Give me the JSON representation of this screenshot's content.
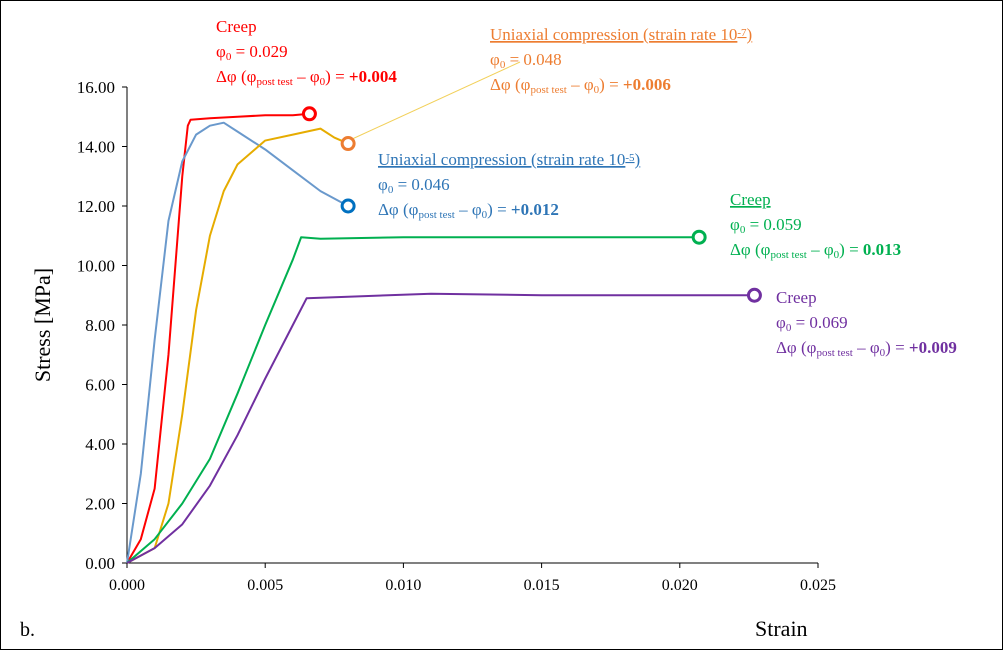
{
  "chart_data": {
    "type": "line",
    "panel_label": "b.",
    "x_label": "Strain",
    "y_label": "Stress [MPa]",
    "xlim": [
      0,
      0.025
    ],
    "ylim": [
      0,
      16
    ],
    "xticks": [
      {
        "value": 0,
        "label": "0.000"
      },
      {
        "value": 0.005,
        "label": "0.005"
      },
      {
        "value": 0.01,
        "label": "0.010"
      },
      {
        "value": 0.015,
        "label": "0.015"
      },
      {
        "value": 0.02,
        "label": "0.020"
      },
      {
        "value": 0.025,
        "label": "0.025"
      }
    ],
    "yticks": [
      {
        "value": 0,
        "label": "0.00"
      },
      {
        "value": 2,
        "label": "2.00"
      },
      {
        "value": 4,
        "label": "4.00"
      },
      {
        "value": 6,
        "label": "6.00"
      },
      {
        "value": 8,
        "label": "8.00"
      },
      {
        "value": 10,
        "label": "10.00"
      },
      {
        "value": 12,
        "label": "12.00"
      },
      {
        "value": 14,
        "label": "14.00"
      },
      {
        "value": 16,
        "label": "16.00"
      }
    ],
    "series": [
      {
        "color": "#ff0000",
        "marker_color": "#ff0000",
        "x": [
          0,
          0.0005,
          0.001,
          0.0015,
          0.002,
          0.0022,
          0.0023,
          0.003,
          0.004,
          0.005,
          0.006,
          0.0066
        ],
        "values": [
          0,
          0.8,
          2.5,
          7,
          13,
          14.7,
          14.9,
          14.95,
          15.0,
          15.05,
          15.05,
          15.1
        ]
      },
      {
        "color": "#6a99cc",
        "marker_color": "#0070c0",
        "x": [
          0,
          0.0005,
          0.001,
          0.0015,
          0.002,
          0.0025,
          0.003,
          0.0035,
          0.004,
          0.005,
          0.006,
          0.007,
          0.008
        ],
        "values": [
          0,
          3,
          7.5,
          11.5,
          13.5,
          14.4,
          14.7,
          14.8,
          14.5,
          13.9,
          13.2,
          12.5,
          12.0
        ]
      },
      {
        "color": "#e6ac00",
        "marker_color": "#ed7d31",
        "x": [
          0,
          0.001,
          0.0015,
          0.002,
          0.0025,
          0.003,
          0.0035,
          0.004,
          0.005,
          0.006,
          0.007,
          0.0075,
          0.008
        ],
        "values": [
          0,
          0.5,
          2,
          5,
          8.5,
          11,
          12.5,
          13.4,
          14.2,
          14.4,
          14.6,
          14.3,
          14.1
        ]
      },
      {
        "color": "#00b050",
        "marker_color": "#00b050",
        "x": [
          0,
          0.001,
          0.002,
          0.003,
          0.004,
          0.005,
          0.006,
          0.0063,
          0.007,
          0.01,
          0.015,
          0.0207
        ],
        "values": [
          0,
          0.8,
          2,
          3.5,
          5.7,
          8,
          10.2,
          10.95,
          10.9,
          10.95,
          10.95,
          10.95
        ]
      },
      {
        "color": "#7030a0",
        "marker_color": "#7030a0",
        "x": [
          0,
          0.001,
          0.002,
          0.003,
          0.004,
          0.005,
          0.006,
          0.0065,
          0.008,
          0.011,
          0.015,
          0.02,
          0.0227
        ],
        "values": [
          0,
          0.5,
          1.3,
          2.6,
          4.3,
          6.2,
          8,
          8.9,
          8.95,
          9.05,
          9.0,
          9.0,
          9.0
        ]
      }
    ],
    "annotations": [
      {
        "color": "#ff0000",
        "lines": [
          [
            "Creep"
          ],
          [
            "φ",
            {
              "sub": "0"
            },
            " = 0.029"
          ],
          [
            "Δφ (φ",
            {
              "sub": "post test"
            },
            " – φ",
            {
              "sub": "0"
            },
            ") = ",
            {
              "bold": "+0.004"
            }
          ]
        ]
      },
      {
        "color": "#ed7d31",
        "lines": [
          [
            "Uniaxial compression (strain rate 10",
            {
              "sup": "-7"
            },
            ")"
          ],
          [
            "φ",
            {
              "sub": "0"
            },
            " = 0.048"
          ],
          [
            "Δφ (φ",
            {
              "sub": "post test"
            },
            " – φ",
            {
              "sub": "0"
            },
            ") = ",
            {
              "bold": "+0.006"
            }
          ]
        ]
      },
      {
        "color": "#2e75b6",
        "lines": [
          [
            "Uniaxial compression (strain rate 10",
            {
              "sup": "-5"
            },
            ")"
          ],
          [
            "φ",
            {
              "sub": "0"
            },
            " = 0.046"
          ],
          [
            "Δφ (φ",
            {
              "sub": "post test"
            },
            " – φ",
            {
              "sub": "0"
            },
            ") = ",
            {
              "bold": "+0.012"
            }
          ]
        ]
      },
      {
        "color": "#00b050",
        "lines": [
          [
            "Creep"
          ],
          [
            "φ",
            {
              "sub": "0"
            },
            " = 0.059"
          ],
          [
            "Δφ (φ",
            {
              "sub": "post test"
            },
            " – φ",
            {
              "sub": "0"
            },
            ") = ",
            {
              "bold": "0.013"
            }
          ]
        ]
      },
      {
        "color": "#7030a0",
        "lines": [
          [
            "Creep"
          ],
          [
            "φ",
            {
              "sub": "0"
            },
            " = 0.069"
          ],
          [
            "Δφ (φ",
            {
              "sub": "post test"
            },
            " – φ",
            {
              "sub": "0"
            },
            ") = ",
            {
              "bold": "+0.009"
            }
          ]
        ]
      }
    ]
  }
}
